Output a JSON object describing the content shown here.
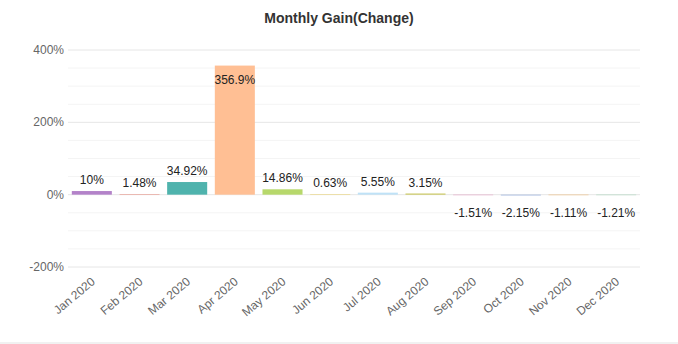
{
  "chart_data": {
    "type": "bar",
    "title": "Monthly Gain(Change)",
    "categories": [
      "Jan 2020",
      "Feb 2020",
      "Mar 2020",
      "Apr 2020",
      "May 2020",
      "Jun 2020",
      "Jul 2020",
      "Aug 2020",
      "Sep 2020",
      "Oct 2020",
      "Nov 2020",
      "Dec 2020"
    ],
    "values": [
      10,
      1.48,
      34.92,
      356.9,
      14.86,
      0.63,
      5.55,
      3.15,
      -1.51,
      -2.15,
      -1.11,
      -1.21
    ],
    "value_labels": [
      "10%",
      "1.48%",
      "34.92%",
      "356.9%",
      "14.86%",
      "0.63%",
      "5.55%",
      "3.15%",
      "-1.51%",
      "-2.15%",
      "-1.11%",
      "-1.21%"
    ],
    "colors": [
      "#b382c9",
      "#ea8f82",
      "#4fb3ad",
      "#ffbf94",
      "#b7d86b",
      "#efd46a",
      "#bfe2f7",
      "#c9c75b",
      "#e6a0c4",
      "#9fb6e0",
      "#f2b66d",
      "#a3d6b8"
    ],
    "ylim": [
      -200,
      400
    ],
    "yticks": [
      {
        "value": -200,
        "label": "-200%"
      },
      {
        "value": 0,
        "label": "0%"
      },
      {
        "value": 200,
        "label": "200%"
      },
      {
        "value": 400,
        "label": "400%"
      }
    ],
    "grid": true,
    "data_labels": true
  }
}
